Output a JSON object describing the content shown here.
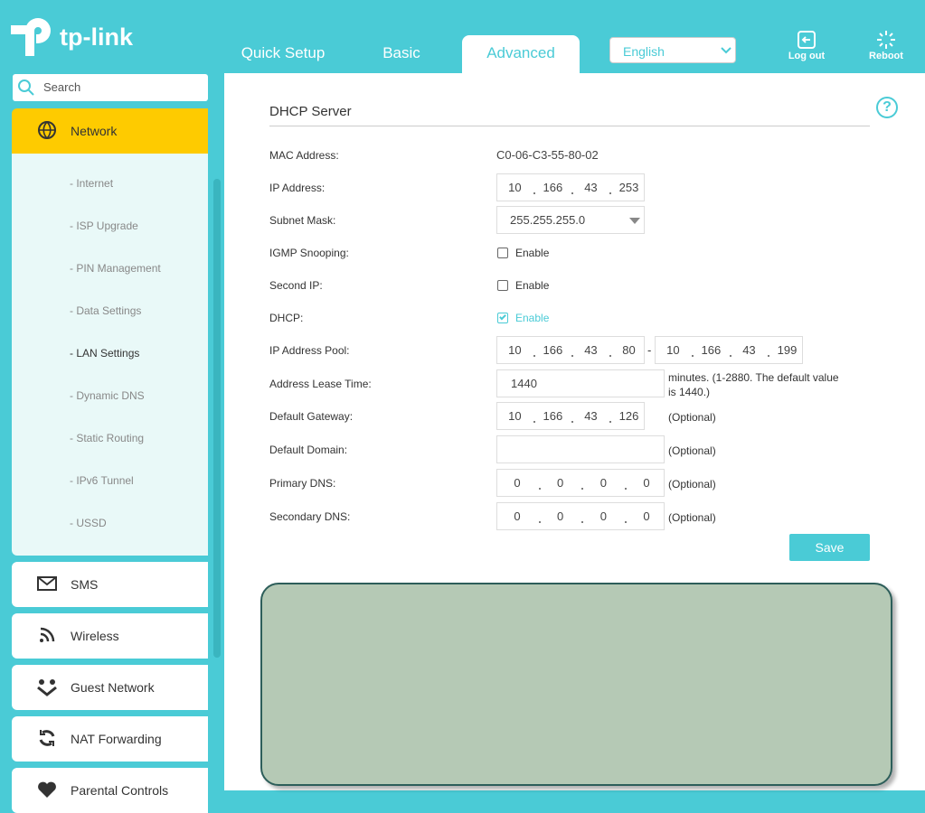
{
  "header": {
    "logo": "tp-link",
    "tabs": [
      "Quick Setup",
      "Basic",
      "Advanced"
    ],
    "active_tab": 2,
    "language": "English",
    "logout": "Log out",
    "reboot": "Reboot"
  },
  "sidebar": {
    "search": "Search",
    "sections": [
      {
        "label": "Network",
        "items": [
          "- Internet",
          "- ISP Upgrade",
          "- PIN Management",
          "- Data Settings",
          "- LAN Settings",
          "- Dynamic DNS",
          "- Static Routing",
          "- IPv6 Tunnel",
          "- USSD"
        ],
        "active_item": 4
      },
      {
        "label": "SMS"
      },
      {
        "label": "Wireless"
      },
      {
        "label": "Guest Network"
      },
      {
        "label": "NAT Forwarding"
      },
      {
        "label": "Parental Controls"
      }
    ]
  },
  "form": {
    "title": "DHCP Server",
    "help_icon": "?",
    "range_separator": "-",
    "rows": [
      {
        "label": "MAC Address:",
        "text": "C0-06-C3-55-80-02"
      },
      {
        "label": "IP Address:",
        "ip": [
          10,
          166,
          43,
          253
        ]
      },
      {
        "label": "Subnet Mask:",
        "select": "255.255.255.0"
      },
      {
        "label": "IGMP Snooping:",
        "checkbox": "Enable",
        "checked": false
      },
      {
        "label": "Second IP:",
        "checkbox": "Enable",
        "checked": false
      },
      {
        "label": "DHCP:",
        "checkbox": "Enable",
        "checked": true
      },
      {
        "label": "IP Address Pool:",
        "ip": [
          10,
          166,
          43,
          80
        ],
        "ip_end": [
          10,
          166,
          43,
          199
        ]
      },
      {
        "label": "Address Lease Time:",
        "input": "1440",
        "note": "minutes. (1-2880. The default value is 1440.)"
      },
      {
        "label": "Default Gateway:",
        "ip": [
          10,
          166,
          43,
          126
        ],
        "note": "(Optional)"
      },
      {
        "label": "Default Domain:",
        "input_empty": true,
        "note": "(Optional)"
      },
      {
        "label": "Primary DNS:",
        "ip": [
          0,
          0,
          0,
          0
        ],
        "note": "(Optional)",
        "wide": true
      },
      {
        "label": "Secondary DNS:",
        "ip": [
          0,
          0,
          0,
          0
        ],
        "note": "(Optional)",
        "wide": true
      }
    ],
    "save": "Save"
  }
}
